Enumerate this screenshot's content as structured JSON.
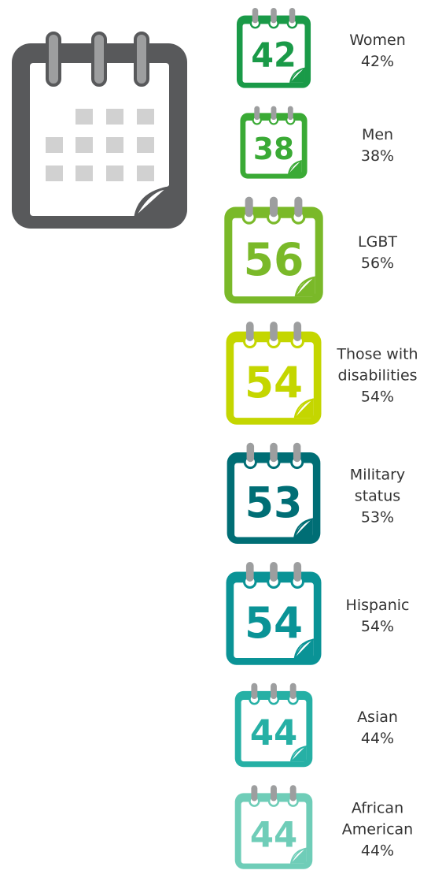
{
  "chart_data": {
    "type": "calendar-icons",
    "categories": [
      "Women",
      "Men",
      "LGBT",
      "Those with disabilities",
      "Military status",
      "Hispanic",
      "Asian",
      "African American"
    ],
    "values": [
      42,
      38,
      56,
      54,
      53,
      54,
      44,
      44
    ],
    "value_labels": [
      "42%",
      "38%",
      "56%",
      "54%",
      "53%",
      "54%",
      "44%",
      "44%"
    ],
    "colors": [
      "#1a9a48",
      "#3aaa35",
      "#7ab929",
      "#c4d600",
      "#006e75",
      "#0a9396",
      "#26b0a5",
      "#6fcdb8"
    ]
  }
}
